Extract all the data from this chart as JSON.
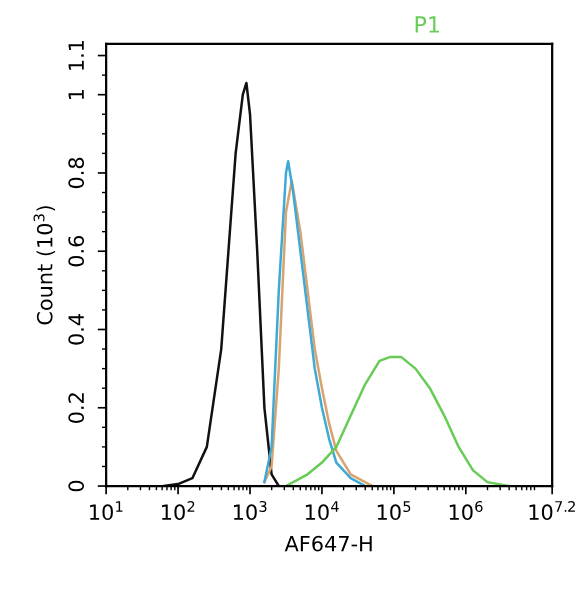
{
  "chart_data": {
    "type": "line",
    "xlabel": "AF647-H",
    "ylabel": "Count (10$^{3}$)",
    "log": "x",
    "grid": false,
    "legend": false,
    "annotations": [
      "P1"
    ],
    "xlim": [
      10,
      15848932
    ],
    "xticks": [
      {
        "value": 10,
        "label": "10$^{1}$"
      },
      {
        "value": 100,
        "label": "10$^{2}$"
      },
      {
        "value": 1000,
        "label": "10$^{3}$"
      },
      {
        "value": 10000,
        "label": "10$^{4}$"
      },
      {
        "value": 100000,
        "label": "10$^{5}$"
      },
      {
        "value": 1000000,
        "label": "10$^{6}$"
      },
      {
        "value": 15848932,
        "label": "10$^{7.2}$"
      }
    ],
    "ylim": [
      0,
      1.13
    ],
    "yticks": [
      0,
      0.2,
      0.4,
      0.6,
      0.8,
      1,
      1.1
    ],
    "series": [
      {
        "color": "#111111",
        "x": [
          63,
          100,
          158,
          251,
          398,
          501,
          631,
          794,
          891,
          1000,
          1259,
          1585,
          1995,
          2512
        ],
        "values": [
          0,
          0.005,
          0.02,
          0.1,
          0.35,
          0.6,
          0.85,
          1.0,
          1.03,
          0.95,
          0.6,
          0.2,
          0.03,
          0
        ]
      },
      {
        "color": "#d9a36e",
        "x": [
          1585,
          1995,
          2512,
          3162,
          3802,
          5012,
          6310,
          7943,
          10000,
          12589,
          15849,
          25119,
          50119
        ],
        "values": [
          0.01,
          0.05,
          0.3,
          0.7,
          0.78,
          0.65,
          0.5,
          0.35,
          0.25,
          0.16,
          0.09,
          0.03,
          0
        ]
      },
      {
        "color": "#3fa9d6",
        "x": [
          1585,
          1995,
          2512,
          3162,
          3388,
          3981,
          5012,
          6310,
          7943,
          10000,
          12589,
          15849,
          25119,
          39811
        ],
        "values": [
          0.01,
          0.1,
          0.5,
          0.8,
          0.83,
          0.75,
          0.6,
          0.45,
          0.3,
          0.2,
          0.12,
          0.06,
          0.02,
          0
        ]
      },
      {
        "color": "#66cc55",
        "x": [
          3162,
          6310,
          10000,
          15849,
          25119,
          39811,
          63096,
          89125,
          125893,
          199526,
          316228,
          501187,
          794328,
          1258925,
          1995262,
          3981072
        ],
        "values": [
          0,
          0.03,
          0.06,
          0.1,
          0.18,
          0.26,
          0.32,
          0.33,
          0.33,
          0.3,
          0.25,
          0.18,
          0.1,
          0.04,
          0.01,
          0
        ]
      }
    ]
  }
}
